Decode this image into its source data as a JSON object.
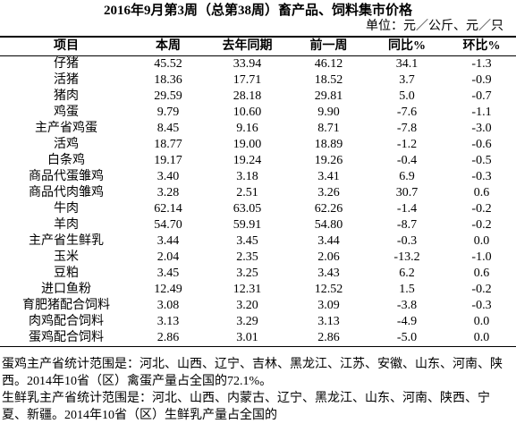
{
  "header": {
    "title": "2016年9月第3周（总第38周）畜产品、饲料集市价格",
    "unit": "单位：元／公斤、元／只"
  },
  "table": {
    "columns": [
      "项目",
      "本周",
      "去年同期",
      "前一周",
      "同比%",
      "环比%"
    ],
    "rows": [
      [
        "仔猪",
        "45.52",
        "33.94",
        "46.12",
        "34.1",
        "-1.3"
      ],
      [
        "活猪",
        "18.36",
        "17.71",
        "18.52",
        "3.7",
        "-0.9"
      ],
      [
        "猪肉",
        "29.59",
        "28.18",
        "29.81",
        "5.0",
        "-0.7"
      ],
      [
        "鸡蛋",
        "9.79",
        "10.60",
        "9.90",
        "-7.6",
        "-1.1"
      ],
      [
        "主产省鸡蛋",
        "8.45",
        "9.16",
        "8.71",
        "-7.8",
        "-3.0"
      ],
      [
        "活鸡",
        "18.77",
        "19.00",
        "18.89",
        "-1.2",
        "-0.6"
      ],
      [
        "白条鸡",
        "19.17",
        "19.24",
        "19.26",
        "-0.4",
        "-0.5"
      ],
      [
        "商品代蛋雏鸡",
        "3.40",
        "3.18",
        "3.41",
        "6.9",
        "-0.3"
      ],
      [
        "商品代肉雏鸡",
        "3.28",
        "2.51",
        "3.26",
        "30.7",
        "0.6"
      ],
      [
        "牛肉",
        "62.14",
        "63.05",
        "62.26",
        "-1.4",
        "-0.2"
      ],
      [
        "羊肉",
        "54.70",
        "59.91",
        "54.80",
        "-8.7",
        "-0.2"
      ],
      [
        "主产省生鲜乳",
        "3.44",
        "3.45",
        "3.44",
        "-0.3",
        "0.0"
      ],
      [
        "玉米",
        "2.04",
        "2.35",
        "2.06",
        "-13.2",
        "-1.0"
      ],
      [
        "豆粕",
        "3.45",
        "3.25",
        "3.43",
        "6.2",
        "0.6"
      ],
      [
        "进口鱼粉",
        "12.49",
        "12.31",
        "12.52",
        "1.5",
        "-0.2"
      ],
      [
        "育肥猪配合饲料",
        "3.08",
        "3.20",
        "3.09",
        "-3.8",
        "-0.3"
      ],
      [
        "肉鸡配合饲料",
        "3.13",
        "3.29",
        "3.13",
        "-4.9",
        "0.0"
      ],
      [
        "蛋鸡配合饲料",
        "2.86",
        "3.01",
        "2.86",
        "-5.0",
        "0.0"
      ]
    ]
  },
  "notes": [
    "蛋鸡主产省统计范围是：河北、山西、辽宁、吉林、黑龙江、江苏、安徽、山东、河南、陕西。2014年10省（区）禽蛋产量占全国的72.1%。",
    "生鲜乳主产省统计范围是：河北、山西、内蒙古、辽宁、黑龙江、山东、河南、陕西、宁夏、新疆。2014年10省（区）生鲜乳产量占全国的"
  ]
}
